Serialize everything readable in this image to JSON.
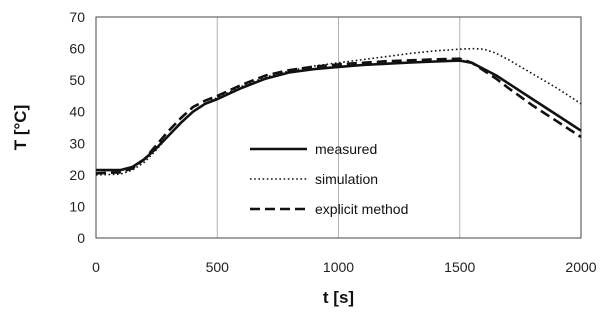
{
  "chart_data": {
    "type": "line",
    "title": "",
    "xlabel": "t [s]",
    "ylabel": "T [°C]",
    "xlim": [
      0,
      2000
    ],
    "ylim": [
      0,
      70
    ],
    "xticks": [
      "0",
      "500",
      "1000",
      "1500",
      "2000"
    ],
    "yticks": [
      "0",
      "10",
      "20",
      "30",
      "40",
      "50",
      "60",
      "70"
    ],
    "grid": "vertical",
    "legend_position": "center-right",
    "series": [
      {
        "name": "measured",
        "style": "solid",
        "x": [
          0,
          100,
          150,
          200,
          250,
          300,
          350,
          400,
          450,
          500,
          600,
          700,
          800,
          900,
          1000,
          1100,
          1200,
          1300,
          1400,
          1500,
          1550,
          1600,
          1650,
          1700,
          1800,
          1900,
          2000
        ],
        "y": [
          21.5,
          21.5,
          22.5,
          25,
          28.5,
          32.5,
          36.5,
          40,
          42.5,
          44,
          47.5,
          50.5,
          52.5,
          53.5,
          54.2,
          54.8,
          55.2,
          55.6,
          55.9,
          56.2,
          55.5,
          53.5,
          51.5,
          49,
          44,
          39,
          34
        ]
      },
      {
        "name": "simulation",
        "style": "dotted",
        "x": [
          0,
          100,
          150,
          200,
          250,
          300,
          350,
          400,
          450,
          500,
          600,
          700,
          800,
          900,
          1000,
          1100,
          1200,
          1300,
          1400,
          1500,
          1550,
          1600,
          1650,
          1700,
          1800,
          1900,
          2000
        ],
        "y": [
          20,
          20.2,
          21.5,
          24,
          28,
          32.5,
          36.5,
          40,
          42.5,
          44.5,
          48,
          51,
          53,
          54.5,
          55.5,
          56.5,
          57.5,
          58.5,
          59.3,
          59.8,
          60,
          59.8,
          58.5,
          56.5,
          52,
          47.5,
          42.5
        ]
      },
      {
        "name": "explicit method",
        "style": "dashed",
        "x": [
          0,
          100,
          150,
          200,
          250,
          300,
          350,
          400,
          450,
          500,
          600,
          700,
          800,
          900,
          1000,
          1100,
          1200,
          1300,
          1400,
          1500,
          1550,
          1600,
          1650,
          1700,
          1800,
          1900,
          2000
        ],
        "y": [
          20.5,
          20.8,
          22,
          25,
          29.5,
          34,
          38,
          41.5,
          43.5,
          45,
          48.5,
          51.5,
          53.2,
          54.3,
          55,
          55.5,
          56,
          56.3,
          56.6,
          56.8,
          55.5,
          53,
          50.5,
          47.5,
          42,
          37,
          32
        ]
      }
    ]
  }
}
